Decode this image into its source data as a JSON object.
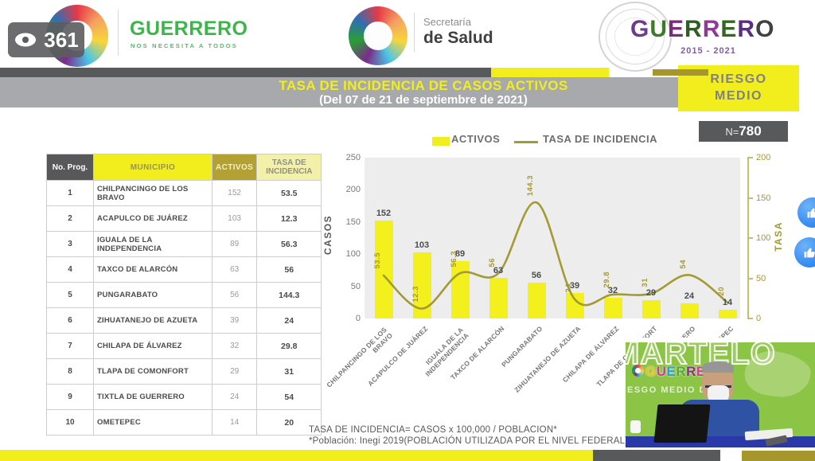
{
  "colors": {
    "accent_yellow": "#f2ee1d",
    "olive": "#a5972c",
    "dark_gray": "#58595b",
    "band_gray": "#a7a9ac",
    "green_brand": "#3cb54a",
    "video_green": "#8cc445"
  },
  "viewer": {
    "count": "361"
  },
  "header": {
    "guerrero_wordmark": {
      "text": "GUERRERO",
      "colors": [
        "#3cb54a",
        "#3cb54a",
        "#3cb54a",
        "#3cb54a",
        "#3cb54a",
        "#3cb54a",
        "#3cb54a",
        "#3cb54a"
      ]
    },
    "tagline": "NOS NECESITA A TODOS",
    "secretaria_line1": "Secretaría",
    "secretaria_line2": "de Salud",
    "right_wordmark": {
      "text": "GUERRERO",
      "colors": [
        "#6d3a8e",
        "#3f7a2b",
        "#7a2d7d",
        "#2f5d23",
        "#8f3a96",
        "#33691e",
        "#5b2d83",
        "#414141"
      ]
    },
    "right_years": "2015 - 2021"
  },
  "title_banner": {
    "line1": "TASA DE INCIDENCIA DE CASOS ACTIVOS",
    "line2": "(Del 07 de 21 de septiembre de 2021)"
  },
  "risk_badge": {
    "line1": "RIESGO",
    "line2": "MEDIO"
  },
  "n_badge": {
    "prefix": "N=",
    "value": "780"
  },
  "table": {
    "columns": [
      "No. Prog.",
      "MUNICIPIO",
      "ACTIVOS",
      "TASA DE INCIDENCIA"
    ],
    "rows": [
      [
        "1",
        "CHILPANCINGO DE LOS BRAVO",
        "152",
        "53.5"
      ],
      [
        "2",
        "ACAPULCO DE JUÁREZ",
        "103",
        "12.3"
      ],
      [
        "3",
        "IGUALA DE LA INDEPENDENCIA",
        "89",
        "56.3"
      ],
      [
        "4",
        "TAXCO DE ALARCÓN",
        "63",
        "56"
      ],
      [
        "5",
        "PUNGARABATO",
        "56",
        "144.3"
      ],
      [
        "6",
        "ZIHUATANEJO DE AZUETA",
        "39",
        "24"
      ],
      [
        "7",
        "CHILAPA DE ÁLVAREZ",
        "32",
        "29.8"
      ],
      [
        "8",
        "TLAPA DE COMONFORT",
        "29",
        "31"
      ],
      [
        "9",
        "TIXTLA DE GUERRERO",
        "24",
        "54"
      ],
      [
        "10",
        "OMETEPEC",
        "14",
        "20"
      ]
    ]
  },
  "chart_data": {
    "type": "bar+line",
    "categories": [
      "CHILPANCINGO DE LOS BRAVO",
      "ACAPULCO DE JUÁREZ",
      "IGUALA DE LA INDEPENDENCIA",
      "TAXCO DE ALARCÓN",
      "PUNGARABATO",
      "ZIHUATANEJO DE AZUETA",
      "CHILAPA DE ÁLVAREZ",
      "TLAPA DE COMONFORT",
      "TIXTLA DE GUERRERO",
      "OMETEPEC"
    ],
    "series": [
      {
        "name": "ACTIVOS",
        "type": "bar",
        "color": "#f4f01e",
        "values": [
          152,
          103,
          89,
          63,
          56,
          39,
          32,
          29,
          24,
          14
        ]
      },
      {
        "name": "TASA DE INCIDENCIA",
        "type": "line",
        "color": "#a29a33",
        "values": [
          53.5,
          12.3,
          56.3,
          56,
          144.3,
          24,
          29.8,
          31,
          54,
          20
        ]
      }
    ],
    "left_axis": {
      "label": "CASOS",
      "min": 0,
      "max": 250,
      "ticks": [
        0,
        50,
        100,
        150,
        200,
        250
      ]
    },
    "right_axis": {
      "label": "TASA",
      "min": 0,
      "max": 200,
      "ticks": [
        0,
        50,
        100,
        150,
        200
      ]
    },
    "legend_position": "top",
    "grid": false,
    "plot_background": "#ededee"
  },
  "footnote": {
    "line1": "TASA DE INCIDENCIA= CASOS x 100,000 / POBLACION*",
    "line2": "*Población: Inegi 2019(POBLACIÓN UTILIZADA POR EL NIVEL FEDERAL)"
  },
  "video": {
    "overlay_title": "MARTELO",
    "brand": {
      "text": "GUERRERO",
      "colors": [
        "#e6c319",
        "#d8379b",
        "#2e9ad6",
        "#58a33a",
        "#8a2d8f",
        "#d8379b",
        "#2e9ad6",
        "#e6c319"
      ]
    },
    "caption": "ESGO MEDIO DE"
  },
  "reactions": [
    {
      "icon": "thumbs-up"
    },
    {
      "icon": "thumbs-up"
    }
  ]
}
